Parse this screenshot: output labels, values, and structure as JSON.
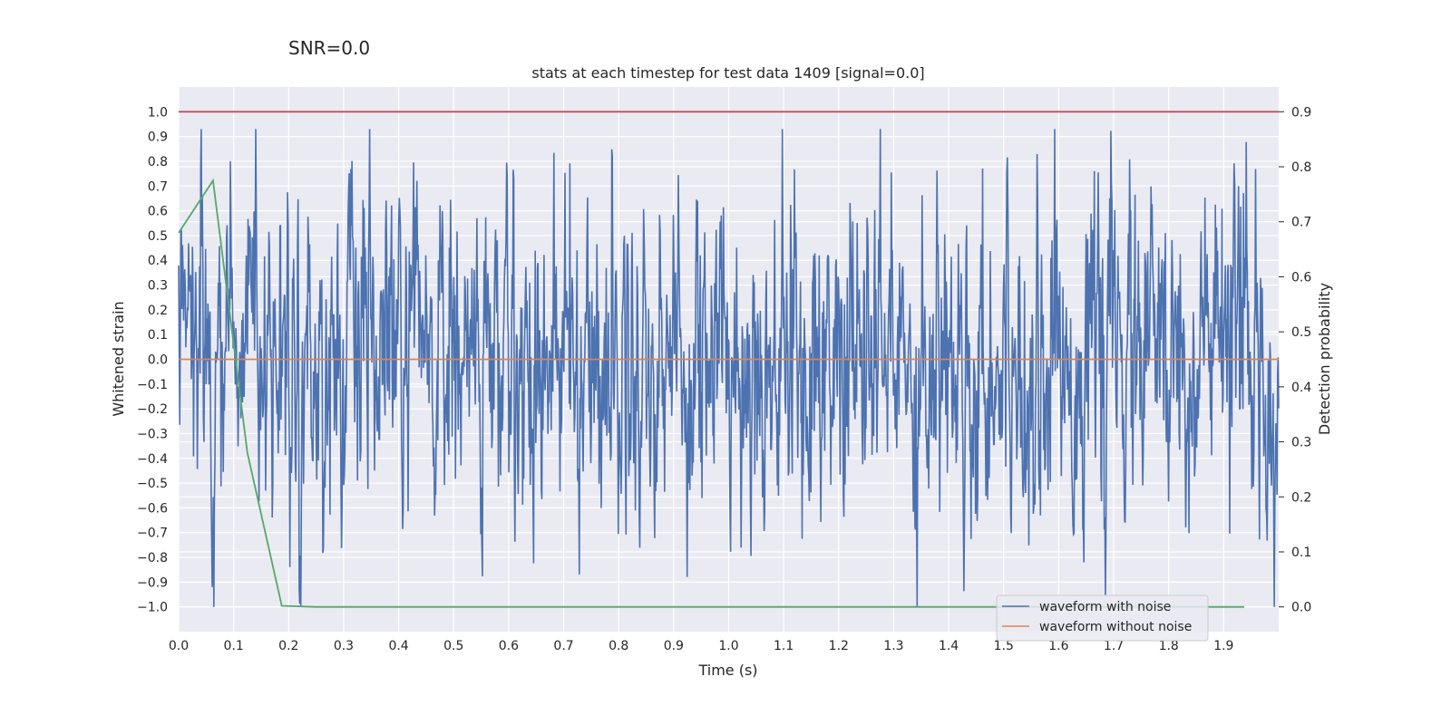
{
  "chart_data": {
    "type": "line",
    "suptitle": "SNR=0.0",
    "title": "stats at each timestep for test data 1409 [signal=0.0]",
    "xlabel": "Time (s)",
    "ylabel": "Whitened strain",
    "y2label": "Detection probability",
    "xlim": [
      0.0,
      2.0
    ],
    "ylim": [
      -1.1,
      1.1
    ],
    "y2lim": [
      -0.045,
      0.945
    ],
    "xticks": [
      "0.0",
      "0.1",
      "0.2",
      "0.3",
      "0.4",
      "0.5",
      "0.6",
      "0.7",
      "0.8",
      "0.9",
      "1.0",
      "1.1",
      "1.2",
      "1.3",
      "1.4",
      "1.5",
      "1.6",
      "1.7",
      "1.8",
      "1.9"
    ],
    "yticks": [
      "1.0",
      "0.9",
      "0.8",
      "0.7",
      "0.6",
      "0.5",
      "0.4",
      "0.3",
      "0.2",
      "0.1",
      "0.0",
      "−0.1",
      "−0.2",
      "−0.3",
      "−0.4",
      "−0.5",
      "−0.6",
      "−0.7",
      "−0.8",
      "−0.9",
      "−1.0"
    ],
    "y2ticks": [
      "0.9",
      "0.8",
      "0.7",
      "0.6",
      "0.5",
      "0.4",
      "0.3",
      "0.2",
      "0.1",
      "0.0"
    ],
    "grid": true,
    "legend_position": "lower-right",
    "series": [
      {
        "name": "waveform with noise",
        "axis": "left",
        "color": "#4c72b0",
        "description_samples": 2000,
        "x_range": [
          0.0,
          2.0
        ],
        "y_range": [
          -1.0,
          0.93
        ]
      },
      {
        "name": "waveform without noise",
        "axis": "left",
        "color": "#dd8452",
        "x": [
          0.0,
          2.0
        ],
        "y": [
          0.0,
          0.0
        ]
      },
      {
        "name": "",
        "axis": "right",
        "color": "#55a868",
        "x": [
          0.0,
          0.0625,
          0.125,
          0.1875,
          0.25,
          0.3125,
          0.375,
          0.4375,
          0.5,
          0.5625,
          0.625,
          0.6875,
          0.75,
          0.8125,
          0.875,
          0.9375,
          1.0,
          1.0625,
          1.125,
          1.1875,
          1.25,
          1.3125,
          1.375,
          1.4375,
          1.5,
          1.5625,
          1.625,
          1.6875,
          1.75,
          1.8125,
          1.875,
          1.9375
        ],
        "y": [
          0.68,
          0.775,
          0.28,
          0.002,
          0.0,
          0.0,
          0.0,
          0.0,
          0.0,
          0.0,
          0.0,
          0.0,
          0.0,
          0.0,
          0.0,
          0.0,
          0.0,
          0.0,
          0.0,
          0.0,
          0.0,
          0.0,
          0.0,
          0.0,
          0.0,
          0.0,
          0.0,
          0.0,
          0.0,
          0.0,
          0.0,
          0.0
        ]
      },
      {
        "name": "",
        "axis": "right",
        "color": "#c44e52",
        "x": [
          0.0,
          2.0
        ],
        "y": [
          0.9,
          0.9
        ]
      }
    ]
  }
}
